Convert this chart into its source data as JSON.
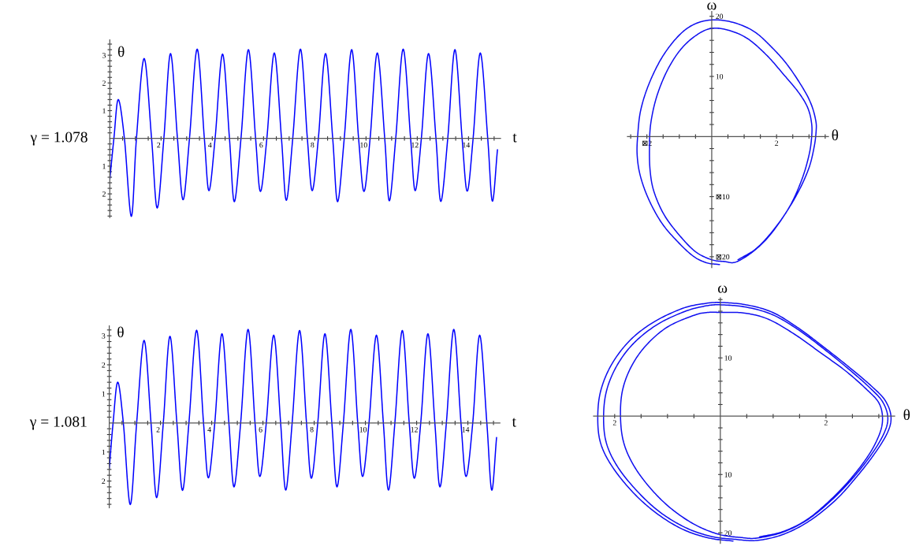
{
  "chart_data": [
    {
      "type": "line",
      "title": "γ = 1.078",
      "xlabel": "t",
      "ylabel": "θ",
      "xlim": [
        0,
        15.25
      ],
      "ylim": [
        -2.85,
        3.55
      ],
      "xticks": [
        {
          "value": 0.5,
          "label": null
        },
        {
          "value": 1,
          "label": null
        },
        {
          "value": 1.5,
          "label": null
        },
        2,
        {
          "value": 2.5,
          "label": null
        },
        {
          "value": 3,
          "label": null
        },
        {
          "value": 3.5,
          "label": null
        },
        4,
        {
          "value": 4.5,
          "label": null
        },
        {
          "value": 5,
          "label": null
        },
        {
          "value": 5.5,
          "label": null
        },
        6,
        {
          "value": 6.5,
          "label": null
        },
        {
          "value": 7,
          "label": null
        },
        {
          "value": 7.5,
          "label": null
        },
        8,
        {
          "value": 8.5,
          "label": null
        },
        {
          "value": 9,
          "label": null
        },
        {
          "value": 9.5,
          "label": null
        },
        10,
        {
          "value": 10.5,
          "label": null
        },
        {
          "value": 11,
          "label": null
        },
        {
          "value": 11.5,
          "label": null
        },
        12,
        {
          "value": 12.5,
          "label": null
        },
        {
          "value": 13,
          "label": null
        },
        {
          "value": 13.5,
          "label": null
        },
        14,
        {
          "value": 14.5,
          "label": null
        },
        {
          "value": 15,
          "label": null
        }
      ],
      "yticks": [
        {
          "value": -2.8,
          "label": null
        },
        {
          "value": -2.6,
          "label": null
        },
        {
          "value": -2.4,
          "label": null
        },
        {
          "value": -2.2,
          "label": null
        },
        {
          "value": -2,
          "label": "2"
        },
        {
          "value": -1.8,
          "label": null
        },
        {
          "value": -1.6,
          "label": null
        },
        {
          "value": -1.4,
          "label": null
        },
        {
          "value": -1.2,
          "label": null
        },
        {
          "value": -1,
          "label": "1"
        },
        {
          "value": -0.8,
          "label": null
        },
        {
          "value": -0.6,
          "label": null
        },
        {
          "value": -0.4,
          "label": null
        },
        {
          "value": -0.2,
          "label": null
        },
        {
          "value": 0.2,
          "label": null
        },
        {
          "value": 0.4,
          "label": null
        },
        {
          "value": 0.6,
          "label": null
        },
        {
          "value": 0.8,
          "label": null
        },
        1,
        {
          "value": 1.2,
          "label": null
        },
        {
          "value": 1.4,
          "label": null
        },
        {
          "value": 1.6,
          "label": null
        },
        {
          "value": 1.8,
          "label": null
        },
        2,
        {
          "value": 2.2,
          "label": null
        },
        {
          "value": 2.4,
          "label": null
        },
        {
          "value": 2.6,
          "label": null
        },
        {
          "value": 2.8,
          "label": null
        },
        3,
        {
          "value": 3.2,
          "label": null
        },
        {
          "value": 3.4,
          "label": null
        }
      ],
      "series": [
        {
          "color": "#0000ff",
          "x": [
            0,
            0.16,
            0.33,
            0.57,
            0.84,
            1.04,
            1.34,
            1.63,
            1.85,
            2.11,
            2.37,
            2.64,
            2.86,
            3.11,
            3.41,
            3.69,
            3.87,
            4.11,
            4.4,
            4.67,
            4.86,
            5.12,
            5.41,
            5.69,
            5.88,
            6.13,
            6.42,
            6.7,
            6.89,
            7.14,
            7.44,
            7.71,
            7.9,
            8.14,
            8.42,
            8.7,
            8.89,
            9.15,
            9.44,
            9.71,
            9.92,
            10.16,
            10.44,
            10.73,
            10.91,
            11.16,
            11.45,
            11.74,
            11.92,
            12.16,
            12.44,
            12.73,
            12.92,
            13.19,
            13.47,
            13.75,
            13.95,
            14.18,
            14.46,
            14.75,
            14.93,
            15.13
          ],
          "values": [
            -1.47,
            0,
            1.4,
            0,
            -2.81,
            0,
            2.88,
            0,
            -2.51,
            0,
            3.06,
            0,
            -2.21,
            0,
            3.22,
            0,
            -1.88,
            0,
            3.04,
            0,
            -2.28,
            0,
            3.2,
            0,
            -1.91,
            0,
            3.08,
            0,
            -2.23,
            0,
            3.22,
            0,
            -1.88,
            0,
            3.06,
            0,
            -2.28,
            0,
            3.2,
            0,
            -1.91,
            0,
            3.08,
            0,
            -2.25,
            0,
            3.22,
            0,
            -1.88,
            0,
            3.06,
            0,
            -2.27,
            0,
            3.2,
            0,
            -1.9,
            0,
            3.08,
            0,
            -2.26,
            -0.41
          ]
        }
      ]
    },
    {
      "type": "line",
      "title": "γ = 1.081",
      "xlabel": "t",
      "ylabel": "θ",
      "xlim": [
        0,
        15.25
      ],
      "ylim": [
        -2.92,
        3.34
      ],
      "xticks": [
        {
          "value": 0.5,
          "label": null
        },
        {
          "value": 1,
          "label": null
        },
        {
          "value": 1.5,
          "label": null
        },
        2,
        {
          "value": 2.5,
          "label": null
        },
        {
          "value": 3,
          "label": null
        },
        {
          "value": 3.5,
          "label": null
        },
        4,
        {
          "value": 4.5,
          "label": null
        },
        {
          "value": 5,
          "label": null
        },
        {
          "value": 5.5,
          "label": null
        },
        6,
        {
          "value": 6.5,
          "label": null
        },
        {
          "value": 7,
          "label": null
        },
        {
          "value": 7.5,
          "label": null
        },
        8,
        {
          "value": 8.5,
          "label": null
        },
        {
          "value": 9,
          "label": null
        },
        {
          "value": 9.5,
          "label": null
        },
        10,
        {
          "value": 10.5,
          "label": null
        },
        {
          "value": 11,
          "label": null
        },
        {
          "value": 11.5,
          "label": null
        },
        12,
        {
          "value": 12.5,
          "label": null
        },
        {
          "value": 13,
          "label": null
        },
        {
          "value": 13.5,
          "label": null
        },
        14,
        {
          "value": 14.5,
          "label": null
        },
        {
          "value": 15,
          "label": null
        }
      ],
      "yticks": [
        {
          "value": -2.8,
          "label": null
        },
        {
          "value": -2.6,
          "label": null
        },
        {
          "value": -2.4,
          "label": null
        },
        {
          "value": -2.2,
          "label": null
        },
        {
          "value": -2,
          "label": "2"
        },
        {
          "value": -1.8,
          "label": null
        },
        {
          "value": -1.6,
          "label": null
        },
        {
          "value": -1.4,
          "label": null
        },
        {
          "value": -1.2,
          "label": null
        },
        {
          "value": -1,
          "label": "1"
        },
        {
          "value": -0.8,
          "label": null
        },
        {
          "value": -0.6,
          "label": null
        },
        {
          "value": -0.4,
          "label": null
        },
        {
          "value": -0.2,
          "label": null
        },
        {
          "value": 0.2,
          "label": null
        },
        {
          "value": 0.4,
          "label": null
        },
        {
          "value": 0.6,
          "label": null
        },
        {
          "value": 0.8,
          "label": null
        },
        1,
        {
          "value": 1.2,
          "label": null
        },
        {
          "value": 1.4,
          "label": null
        },
        {
          "value": 1.6,
          "label": null
        },
        {
          "value": 1.8,
          "label": null
        },
        2,
        {
          "value": 2.2,
          "label": null
        },
        {
          "value": 2.4,
          "label": null
        },
        {
          "value": 2.6,
          "label": null
        },
        {
          "value": 2.8,
          "label": null
        },
        3,
        {
          "value": 3.2,
          "label": null
        }
      ],
      "series": [
        {
          "color": "#0000ff",
          "x": [
            0,
            0.15,
            0.33,
            0.55,
            0.82,
            1.07,
            1.36,
            1.63,
            1.85,
            2.11,
            2.37,
            2.64,
            2.86,
            3.11,
            3.41,
            3.68,
            3.87,
            4.12,
            4.4,
            4.67,
            4.87,
            5.13,
            5.42,
            5.69,
            5.88,
            6.13,
            6.42,
            6.69,
            6.89,
            7.14,
            7.43,
            7.7,
            7.89,
            8.14,
            8.42,
            8.69,
            8.89,
            9.14,
            9.43,
            9.7,
            9.89,
            10.14,
            10.43,
            10.7,
            10.9,
            11.15,
            11.44,
            11.71,
            11.91,
            12.16,
            12.44,
            12.71,
            12.91,
            13.16,
            13.45,
            13.73,
            13.93,
            14.19,
            14.46,
            14.74,
            14.93,
            15.12
          ],
          "values": [
            -1.57,
            0,
            1.4,
            0,
            -2.81,
            0,
            2.84,
            0,
            -2.57,
            0,
            2.98,
            0,
            -2.32,
            0,
            3.19,
            0,
            -1.89,
            0,
            3.07,
            0,
            -2.2,
            0,
            3.22,
            0,
            -1.84,
            0,
            3.02,
            0,
            -2.31,
            0,
            3.18,
            0,
            -1.9,
            0,
            3.07,
            0,
            -2.2,
            0,
            3.22,
            0,
            -1.84,
            0,
            3.02,
            0,
            -2.31,
            0,
            3.18,
            0,
            -1.9,
            0,
            3.07,
            0,
            -2.2,
            0,
            3.22,
            0,
            -1.84,
            0,
            3.02,
            0,
            -2.31,
            -0.5
          ]
        }
      ]
    },
    {
      "type": "line",
      "xlabel": "θ",
      "ylabel": "ω",
      "xlim": [
        -2.6,
        3.6
      ],
      "ylim": [
        -21.8,
        20.8
      ],
      "xticks": [
        {
          "value": -2.5,
          "label": null
        },
        {
          "value": -2,
          "label": "⊠2"
        },
        {
          "value": -1.5,
          "label": null
        },
        {
          "value": -1,
          "label": null
        },
        {
          "value": -0.5,
          "label": null
        },
        {
          "value": 0.5,
          "label": null
        },
        {
          "value": 1,
          "label": null
        },
        {
          "value": 1.5,
          "label": null
        },
        2,
        {
          "value": 2.5,
          "label": null
        },
        {
          "value": 3,
          "label": null
        },
        {
          "value": 3.5,
          "label": null
        }
      ],
      "yticks": [
        {
          "value": -20,
          "label": "⊠20"
        },
        {
          "value": -18,
          "label": null
        },
        {
          "value": -16,
          "label": null
        },
        {
          "value": -14,
          "label": null
        },
        {
          "value": -12,
          "label": null
        },
        {
          "value": -10,
          "label": "⊠10"
        },
        {
          "value": -8,
          "label": null
        },
        {
          "value": -6,
          "label": null
        },
        {
          "value": -4,
          "label": null
        },
        {
          "value": -2,
          "label": null
        },
        {
          "value": 2,
          "label": null
        },
        {
          "value": 4,
          "label": null
        },
        {
          "value": 6,
          "label": null
        },
        {
          "value": 8,
          "label": null
        },
        10,
        {
          "value": 12,
          "label": null
        },
        {
          "value": 14,
          "label": null
        },
        {
          "value": 16,
          "label": null
        },
        {
          "value": 18,
          "label": null
        },
        20
      ],
      "series": [
        {
          "color": "#1010f0",
          "x": [
            0.24,
            -0.16,
            -0.57,
            -1.05,
            -1.54,
            -1.94,
            -2.2,
            -2.3,
            -2.28,
            -2.19,
            -1.94,
            -1.54,
            -1.05,
            -0.57,
            0,
            0.65,
            1.3,
            1.86,
            2.35,
            2.83,
            3.08,
            3.21,
            3.22,
            3.16,
            3.0,
            2.67,
            2.19,
            1.7,
            1.21,
            0.73,
            0.4,
            0,
            -0.49,
            -0.97,
            -1.46,
            -1.78,
            -1.9,
            -1.92,
            -1.88,
            -1.7,
            -1.38,
            -0.97,
            -0.49,
            0,
            0.57,
            1.13,
            1.7,
            2.19,
            2.67,
            2.96,
            3.08,
            3.08,
            3.0,
            2.79,
            2.43,
            1.94,
            1.38,
            0.81
          ],
          "values": [
            -21.3,
            -21.0,
            -19.9,
            -17.5,
            -14.4,
            -10.5,
            -6.6,
            -3.1,
            0.4,
            4.4,
            8.7,
            13.1,
            16.6,
            18.6,
            19.4,
            19.0,
            17.5,
            14.8,
            11.8,
            7.9,
            5.2,
            2.6,
            0.9,
            -1.7,
            -5.2,
            -9.2,
            -13.5,
            -17.0,
            -19.4,
            -20.9,
            -20.8,
            -20.5,
            -19.2,
            -16.6,
            -13.1,
            -9.2,
            -5.7,
            -1.7,
            2.2,
            6.6,
            10.9,
            14.4,
            16.8,
            18.0,
            17.6,
            16.2,
            13.5,
            10.5,
            7.4,
            4.8,
            2.2,
            -0.2,
            -3.1,
            -7.0,
            -11.4,
            -15.3,
            -18.6,
            -20.5
          ]
        }
      ]
    },
    {
      "type": "line",
      "xlabel": "θ",
      "ylabel": "ω",
      "xlim": [
        -2.4,
        3.3
      ],
      "ylim": [
        -21.8,
        20.3
      ],
      "xticks": [
        {
          "value": -2,
          "label": "2"
        },
        {
          "value": -1.5,
          "label": null
        },
        {
          "value": -1,
          "label": null
        },
        {
          "value": -0.5,
          "label": null
        },
        {
          "value": 0.5,
          "label": null
        },
        {
          "value": 1,
          "label": null
        },
        {
          "value": 1.5,
          "label": null
        },
        2,
        {
          "value": 2.5,
          "label": null
        },
        {
          "value": 3,
          "label": null
        }
      ],
      "yticks": [
        {
          "value": -20,
          "label": "20"
        },
        {
          "value": -18,
          "label": null
        },
        {
          "value": -16,
          "label": null
        },
        {
          "value": -14,
          "label": null
        },
        {
          "value": -12,
          "label": null
        },
        {
          "value": -10,
          "label": "10"
        },
        {
          "value": -8,
          "label": null
        },
        {
          "value": -6,
          "label": null
        },
        {
          "value": -4,
          "label": null
        },
        {
          "value": -2,
          "label": null
        },
        {
          "value": 2,
          "label": null
        },
        {
          "value": 4,
          "label": null
        },
        {
          "value": 6,
          "label": null
        },
        {
          "value": 8,
          "label": null
        },
        10,
        {
          "value": 12,
          "label": null
        },
        {
          "value": 14,
          "label": null
        },
        {
          "value": 16,
          "label": null
        },
        {
          "value": 18,
          "label": null
        },
        {
          "value": 20,
          "label": null
        }
      ],
      "series": [
        {
          "color": "#1010f0",
          "x": [
            0.24,
            -0.21,
            -0.71,
            -1.2,
            -1.65,
            -2.05,
            -2.27,
            -2.32,
            -2.26,
            -2.05,
            -1.7,
            -1.25,
            -0.71,
            -0.31,
            0,
            0.49,
            0.99,
            1.48,
            1.98,
            2.48,
            2.88,
            3.12,
            3.23,
            3.17,
            2.93,
            2.58,
            2.18,
            1.68,
            1.18,
            0.69,
            0.26,
            -0.18,
            -0.66,
            -1.15,
            -1.58,
            -1.95,
            -2.16,
            -2.21,
            -2.15,
            -1.95,
            -1.63,
            -1.18,
            -0.66,
            -0.28,
            0,
            0.49,
            0.99,
            1.48,
            1.98,
            2.48,
            2.85,
            3.07,
            3.17,
            3.11,
            2.88,
            2.53,
            2.13,
            1.66,
            1.18,
            0.69,
            0.39,
            -0.01,
            -0.46,
            -0.91,
            -1.3,
            -1.63,
            -1.83,
            -1.89,
            -1.85,
            -1.68,
            -1.4,
            -1.0,
            -0.5,
            -0.23,
            0,
            0.44,
            0.89,
            1.38,
            1.88,
            2.38,
            2.78,
            3.0,
            3.07,
            3.02,
            2.82,
            2.48,
            2.08,
            1.63,
            1.18,
            0.74
          ],
          "values": [
            -21.4,
            -20.9,
            -19.4,
            -16.7,
            -13.1,
            -8.6,
            -4.5,
            0,
            4.5,
            9.0,
            13.1,
            16.2,
            18.5,
            19.3,
            19.5,
            19.1,
            17.8,
            15.1,
            11.7,
            8.1,
            5.0,
            2.7,
            0,
            -2.7,
            -6.3,
            -10.4,
            -14.4,
            -18.0,
            -20.3,
            -21.3,
            -21.1,
            -20.6,
            -19.1,
            -16.4,
            -12.8,
            -8.6,
            -4.5,
            0,
            4.5,
            8.8,
            12.6,
            15.8,
            18.0,
            18.9,
            19.1,
            18.7,
            17.4,
            14.8,
            11.4,
            7.7,
            4.7,
            2.5,
            -0.1,
            -2.7,
            -6.3,
            -10.4,
            -14.2,
            -17.7,
            -19.9,
            -20.9,
            -20.8,
            -20.3,
            -18.7,
            -16.0,
            -12.6,
            -8.6,
            -4.5,
            0,
            4.5,
            8.6,
            12.2,
            15.3,
            17.3,
            17.8,
            17.8,
            17.7,
            16.7,
            14.2,
            11.0,
            7.7,
            4.5,
            2.3,
            -0.2,
            -2.9,
            -6.5,
            -10.6,
            -14.4,
            -17.8,
            -19.8,
            -20.7
          ]
        }
      ]
    }
  ]
}
